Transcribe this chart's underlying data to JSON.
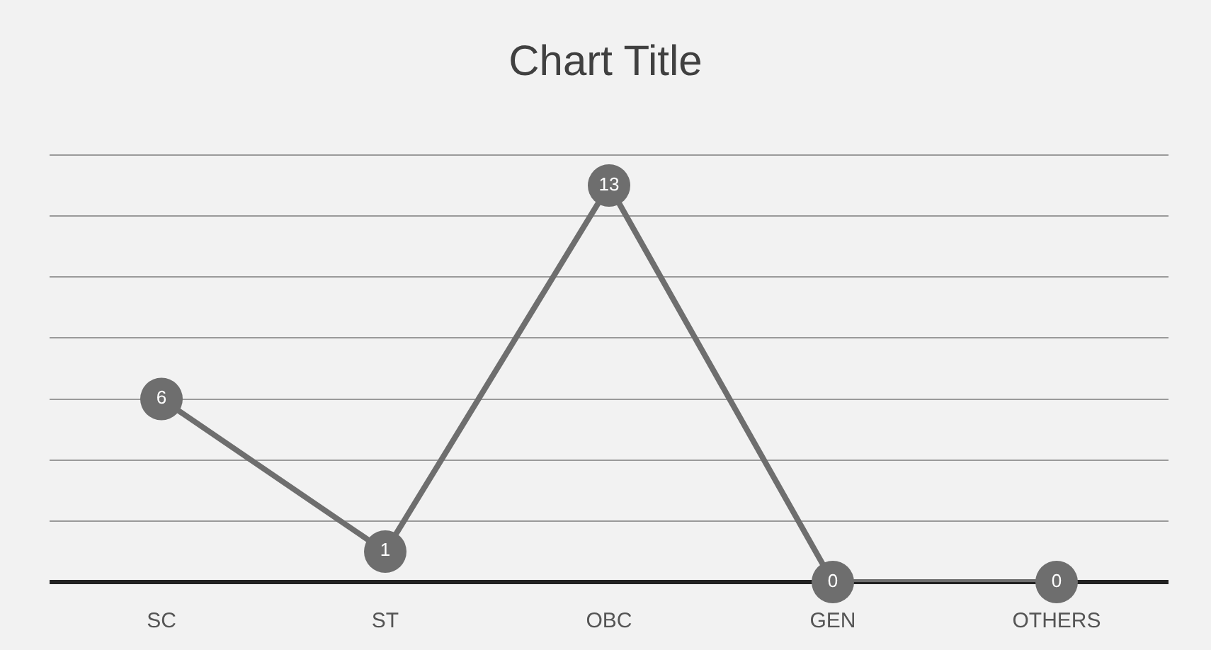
{
  "chart_data": {
    "type": "line",
    "title": "Chart Title",
    "categories": [
      "SC",
      "ST",
      "OBC",
      "GEN",
      "OTHERS"
    ],
    "series": [
      {
        "color": "#6e6e6e",
        "values": [
          6,
          1,
          13,
          0,
          0
        ]
      }
    ],
    "tick_labels": "x",
    "grid": "y",
    "marker": "circle",
    "line_style": "solid",
    "data_labels": true
  }
}
